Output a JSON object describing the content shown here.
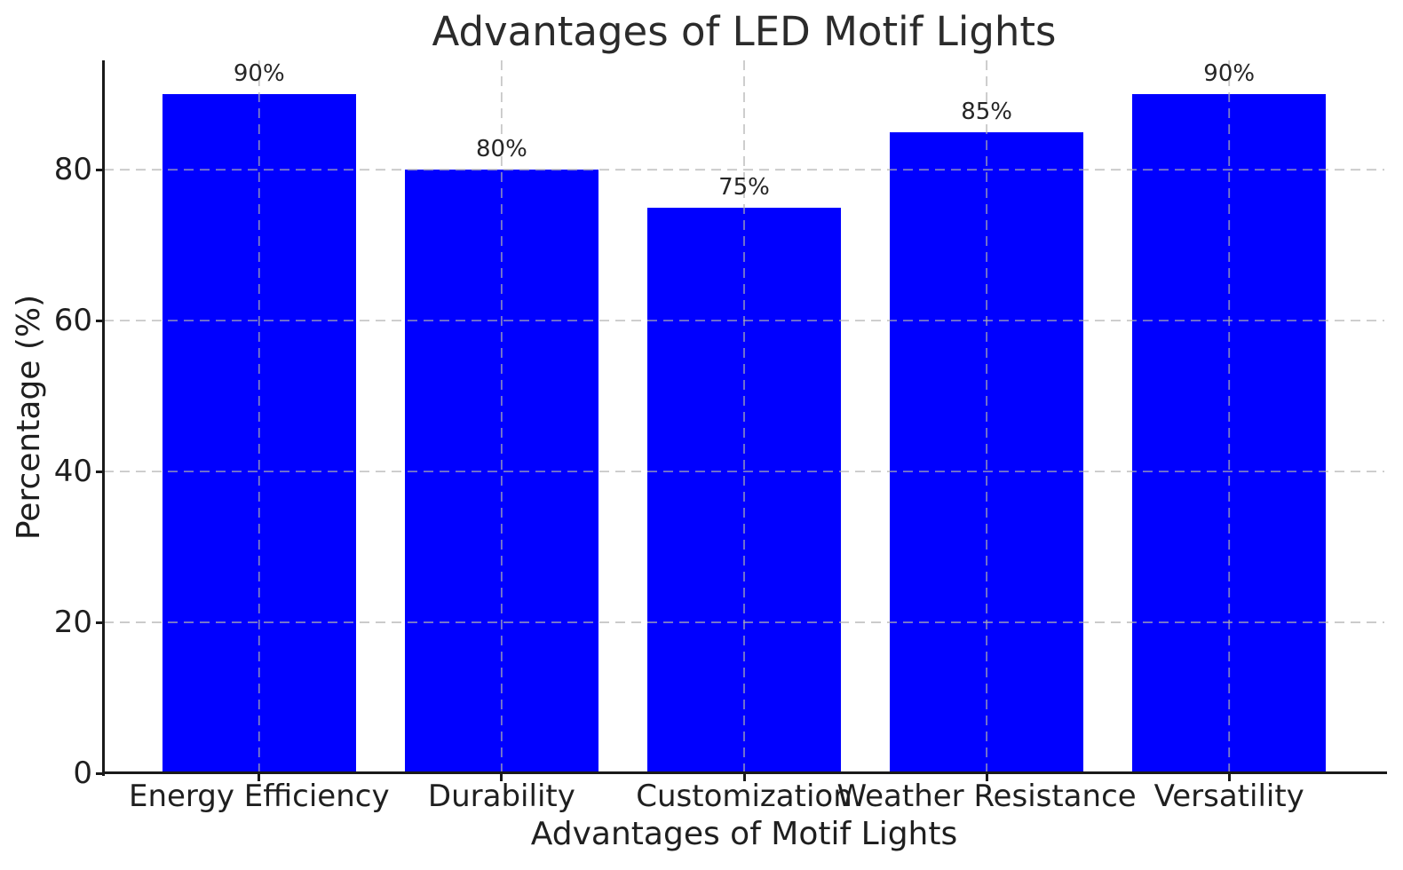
{
  "chart_data": {
    "type": "bar",
    "title": "Advantages of LED Motif Lights",
    "xlabel": "Advantages of Motif Lights",
    "ylabel": "Percentage (%)",
    "categories": [
      "Energy Efficiency",
      "Durability",
      "Customization",
      "Weather Resistance",
      "Versatility"
    ],
    "values": [
      90,
      80,
      75,
      85,
      90
    ],
    "value_labels": [
      "90%",
      "80%",
      "75%",
      "85%",
      "90%"
    ],
    "yticks": [
      0,
      20,
      40,
      60,
      80
    ],
    "ylim": [
      0,
      94.5
    ],
    "bar_color": "#0000ff",
    "bar_width_fraction": 0.8,
    "grid": "dashed, horizontal and vertical at bar centers, drawn above bars",
    "grid_color": "#b0b0b0",
    "grid_alpha": 0.7,
    "axis_color": "#1a1a1a",
    "legend": "none",
    "background": "#ffffff"
  }
}
